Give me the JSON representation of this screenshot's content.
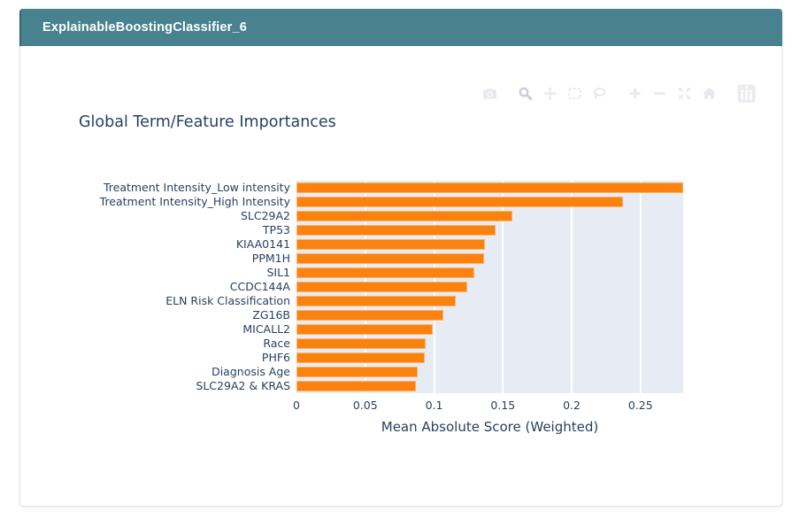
{
  "header": {
    "title": "ExplainableBoostingClassifier_6"
  },
  "modebar": {
    "icons": [
      "camera",
      "zoom",
      "pan",
      "box-select",
      "lasso-select",
      "zoom-in",
      "zoom-out",
      "autoscale",
      "reset-axes",
      "plotly-logo"
    ],
    "active_icon": "zoom"
  },
  "chart_data": {
    "type": "bar",
    "orientation": "horizontal",
    "title": "Global Term/Feature Importances",
    "xlabel": "Mean Absolute Score (Weighted)",
    "categories": [
      "Treatment Intensity_Low intensity",
      "Treatment Intensity_High Intensity",
      "SLC29A2",
      "TP53",
      "KIAA0141",
      "PPM1H",
      "SIL1",
      "CCDC144A",
      "ELN Risk Classification",
      "ZG16B",
      "MICALL2",
      "Race",
      "PHF6",
      "Diagnosis Age",
      "SLC29A2 & KRAS"
    ],
    "values": [
      0.281,
      0.237,
      0.157,
      0.145,
      0.137,
      0.136,
      0.129,
      0.124,
      0.116,
      0.107,
      0.099,
      0.094,
      0.0935,
      0.088,
      0.0865
    ],
    "xticks": {
      "values": [
        0,
        0.05,
        0.1,
        0.15,
        0.2,
        0.25
      ],
      "labels": [
        "0",
        "0.05",
        "0.1",
        "0.15",
        "0.2",
        "0.25"
      ]
    },
    "xlim": [
      0,
      0.281
    ],
    "grid": true,
    "legend": false
  },
  "colors": {
    "header_bg": "#47828e",
    "header_text": "#ffffff",
    "card_border": "#dfe5ee",
    "bar": "#fb820f",
    "bar_border": "#fcb469",
    "plot_bg": "#e6ebf4",
    "gridline": "#ffffff",
    "text": "#2a3f5f",
    "modebar_icon": "#e7e9ee",
    "modebar_icon_active": "#c9cdd5"
  }
}
